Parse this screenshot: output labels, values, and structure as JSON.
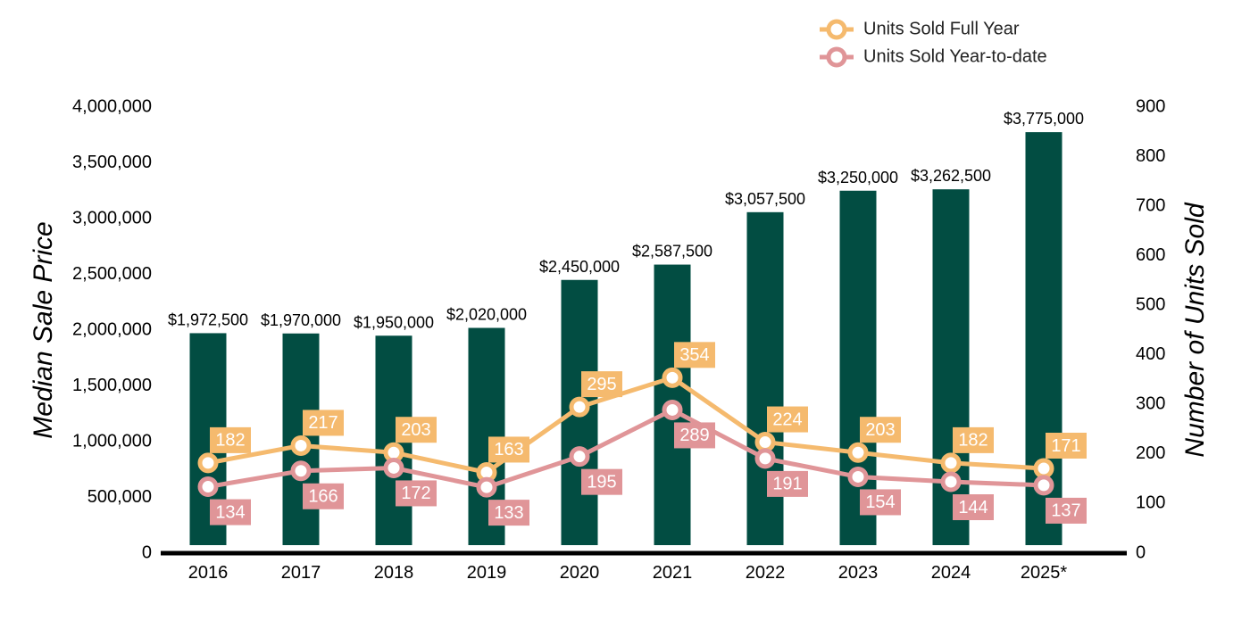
{
  "chart_data": {
    "type": "bar",
    "categories": [
      "2016",
      "2017",
      "2018",
      "2019",
      "2020",
      "2021",
      "2022",
      "2023",
      "2024",
      "2025*"
    ],
    "series": [
      {
        "name": "",
        "kind": "bar",
        "axis": "left",
        "color": "#024D42",
        "values": [
          1972500,
          1970000,
          1950000,
          2020000,
          2450000,
          2587500,
          3057500,
          3250000,
          3262500,
          3775000
        ],
        "labels": [
          "$1,972,500",
          "$1,970,000",
          "$1,950,000",
          "$2,020,000",
          "$2,450,000",
          "$2,587,500",
          "$3,057,500",
          "$3,250,000",
          "$3,262,500",
          "$3,775,000"
        ]
      },
      {
        "name": "Units Sold Full Year",
        "kind": "line",
        "axis": "right",
        "color": "#F5BA6E",
        "label_position": "above",
        "values": [
          182,
          217,
          203,
          163,
          295,
          354,
          224,
          203,
          182,
          171
        ]
      },
      {
        "name": "Units Sold Year-to-date",
        "kind": "line",
        "axis": "right",
        "color": "#E09598",
        "label_position": "below",
        "values": [
          134,
          166,
          172,
          133,
          195,
          289,
          191,
          154,
          144,
          137
        ]
      }
    ],
    "ylabel": "Median Sale Price",
    "y2label": "Number of Units Sold",
    "ylim": [
      0,
      4000000
    ],
    "y2lim": [
      0,
      900
    ],
    "yticks": [
      "0",
      "500,000",
      "1,000,000",
      "1,500,000",
      "2,000,000",
      "2,500,000",
      "3,000,000",
      "3,500,000",
      "4,000,000"
    ],
    "y2ticks": [
      "0",
      "100",
      "200",
      "300",
      "400",
      "500",
      "600",
      "700",
      "800",
      "900"
    ],
    "legend_position": "top-right",
    "grid": false
  }
}
